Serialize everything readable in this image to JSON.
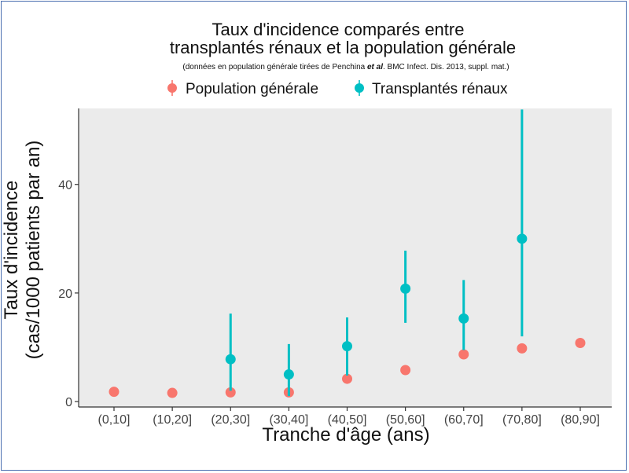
{
  "chart_data": {
    "type": "scatter",
    "title_line1": "Taux d'incidence comparés entre",
    "title_line2": "transplantés rénaux et la population générale",
    "subtitle_pre": "(données en population générale tirées de Penchina ",
    "subtitle_em": "et al",
    "subtitle_post": ". BMC Infect. Dis. 2013, suppl. mat.)",
    "xlabel": "Tranche d'âge (ans)",
    "ylabel_line1": "Taux d'incidence",
    "ylabel_line2": "(cas/1000 patients par an)",
    "categories": [
      "(0,10]",
      "(10,20]",
      "(20,30]",
      "(30,40]",
      "(40,50]",
      "(50,60]",
      "(60,70]",
      "(70,80]",
      "(80,90]"
    ],
    "ylim": [
      -1,
      54
    ],
    "yticks": [
      0,
      20,
      40
    ],
    "legend_position": "top",
    "grid": false,
    "series": [
      {
        "name": "Population générale",
        "color": "#F8766D",
        "values": [
          1.8,
          1.6,
          1.7,
          1.7,
          4.2,
          5.8,
          8.7,
          9.8,
          10.8
        ]
      },
      {
        "name": "Transplantés rénaux",
        "color": "#00BFC4",
        "values": [
          null,
          null,
          7.8,
          5.0,
          10.2,
          20.8,
          15.3,
          30.0,
          null
        ],
        "lower": [
          null,
          null,
          2.0,
          1.0,
          4.8,
          14.5,
          9.5,
          12.0,
          null
        ],
        "upper": [
          null,
          null,
          16.2,
          10.6,
          15.5,
          27.8,
          22.4,
          53.8,
          null
        ]
      }
    ]
  }
}
